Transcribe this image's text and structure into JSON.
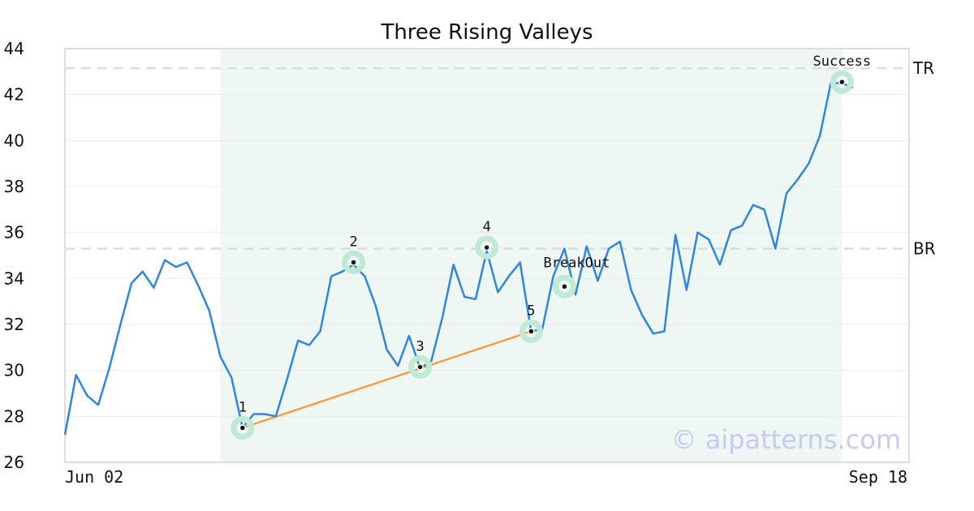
{
  "chart_data": {
    "type": "line",
    "title": "Three Rising Valleys",
    "xlabel": "",
    "ylabel": "",
    "x_tick_labels": [
      "Jun 02",
      "Sep 18"
    ],
    "ylim": [
      26,
      44
    ],
    "y_ticks": [
      26,
      28,
      30,
      32,
      34,
      36,
      38,
      40,
      42,
      44
    ],
    "grid": "horizontal",
    "levels": [
      {
        "label": "TR",
        "value": 43.15
      },
      {
        "label": "BR",
        "value": 35.3
      }
    ],
    "series": [
      {
        "color": "#2f86de",
        "values": [
          27.2,
          29.8,
          28.9,
          28.5,
          30.1,
          32.0,
          33.8,
          34.3,
          33.6,
          34.8,
          34.5,
          34.7,
          33.7,
          32.6,
          30.6,
          29.7,
          27.5,
          28.1,
          28.1,
          28.0,
          29.6,
          31.3,
          31.1,
          31.7,
          34.1,
          34.3,
          34.6,
          34.1,
          32.8,
          30.9,
          30.2,
          31.5,
          30.1,
          30.4,
          32.3,
          34.6,
          33.2,
          33.1,
          35.2,
          33.4,
          34.1,
          34.7,
          31.7,
          31.8,
          34.1,
          35.3,
          33.3,
          35.4,
          33.9,
          35.3,
          35.6,
          33.5,
          32.4,
          31.6,
          31.7,
          35.9,
          33.5,
          36.0,
          35.7,
          34.6,
          36.1,
          36.3,
          37.2,
          37.0,
          35.3,
          37.7,
          38.3,
          39.0,
          40.2,
          42.5,
          42.5,
          42.3
        ]
      }
    ],
    "highlight_range": [
      14,
      70
    ],
    "trendline": {
      "color": "#f5a040",
      "from_index": 16,
      "from_value": 27.5,
      "to_index": 42,
      "to_value": 31.7
    },
    "points": [
      {
        "label": "1",
        "index": 16,
        "value": 27.5
      },
      {
        "label": "2",
        "index": 26,
        "value": 34.7
      },
      {
        "label": "3",
        "index": 32,
        "value": 30.15
      },
      {
        "label": "4",
        "index": 38,
        "value": 35.35
      },
      {
        "label": "5",
        "index": 42,
        "value": 31.7
      },
      {
        "label": "BreakOut",
        "index": 45,
        "value": 33.65
      },
      {
        "label": "Success",
        "index": 70,
        "value": 42.55
      }
    ],
    "watermark": "© aipatterns.com"
  }
}
